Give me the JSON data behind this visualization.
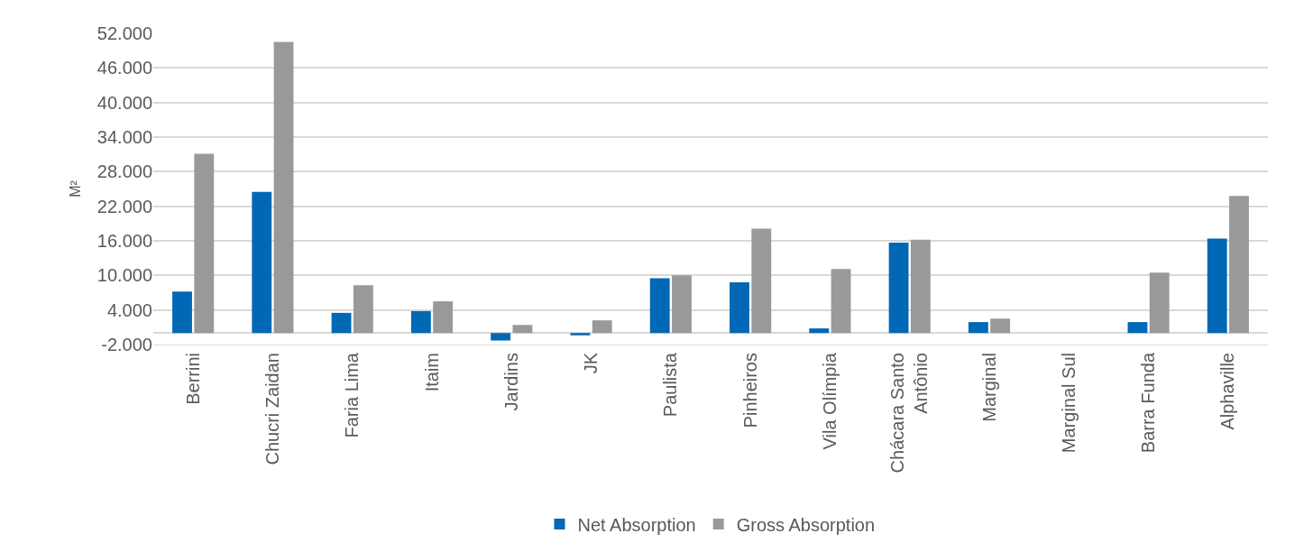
{
  "chart_data": {
    "type": "bar",
    "ylabel": "M²",
    "categories": [
      "Berrini",
      "Chucri Zaidan",
      "Faria Lima",
      "Itaim",
      "Jardins",
      "JK",
      "Paulista",
      "Pinheiros",
      "Vila Olímpia",
      "Chácara Santo Antônio",
      "Marginal",
      "Marginal Sul",
      "Barra Funda",
      "Alphaville"
    ],
    "series": [
      {
        "name": "Net Absorption",
        "color": "#0068b5",
        "values": [
          7200,
          24500,
          3500,
          3800,
          -1300,
          -400,
          9500,
          8800,
          800,
          15700,
          1900,
          0,
          1900,
          16400
        ]
      },
      {
        "name": "Gross Absorption",
        "color": "#999999",
        "values": [
          31100,
          50500,
          8300,
          5500,
          1400,
          2200,
          10000,
          18100,
          11100,
          16200,
          2500,
          0,
          10500,
          23800
        ]
      }
    ],
    "ylim": [
      -2000,
      52000
    ],
    "yticks": [
      {
        "value": -2000,
        "label": "-2.000"
      },
      {
        "value": 4000,
        "label": "4.000"
      },
      {
        "value": 10000,
        "label": "10.000"
      },
      {
        "value": 16000,
        "label": "16.000"
      },
      {
        "value": 22000,
        "label": "22.000"
      },
      {
        "value": 28000,
        "label": "28.000"
      },
      {
        "value": 34000,
        "label": "34.000"
      },
      {
        "value": 40000,
        "label": "40.000"
      },
      {
        "value": 46000,
        "label": "46.000"
      },
      {
        "value": 52000,
        "label": "52.000"
      }
    ],
    "grid": "y",
    "legend": "bottom"
  }
}
